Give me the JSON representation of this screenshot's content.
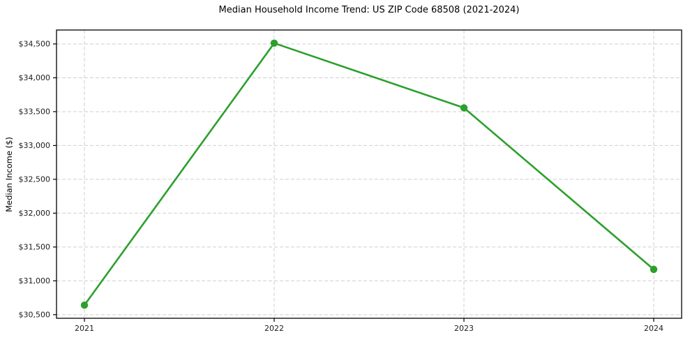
{
  "chart_data": {
    "type": "line",
    "title": "Median Household Income Trend: US ZIP Code 68508 (2021-2024)",
    "xlabel": "",
    "ylabel": "Median Income ($)",
    "categories": [
      "2021",
      "2022",
      "2023",
      "2024"
    ],
    "values": [
      30641,
      34512,
      33556,
      31169
    ],
    "ylim": [
      30447,
      34706
    ],
    "y_tick_values": [
      30500,
      31000,
      31500,
      32000,
      32500,
      33000,
      33500,
      34000,
      34500
    ],
    "y_tick_labels": [
      "$30,500",
      "$31,000",
      "$31,500",
      "$32,000",
      "$32,500",
      "$33,000",
      "$33,500",
      "$34,000",
      "$34,500"
    ],
    "x_tick_labels": [
      "2021",
      "2022",
      "2023",
      "2024"
    ],
    "grid": true,
    "grid_style": "dashed",
    "legend": false,
    "legend_position": "none",
    "colors": {
      "line": "#2ca02c",
      "marker": "#2ca02c",
      "grid": "#cfcfcf",
      "axis": "#000000",
      "text": "#1a1a1a",
      "background": "#ffffff"
    }
  }
}
